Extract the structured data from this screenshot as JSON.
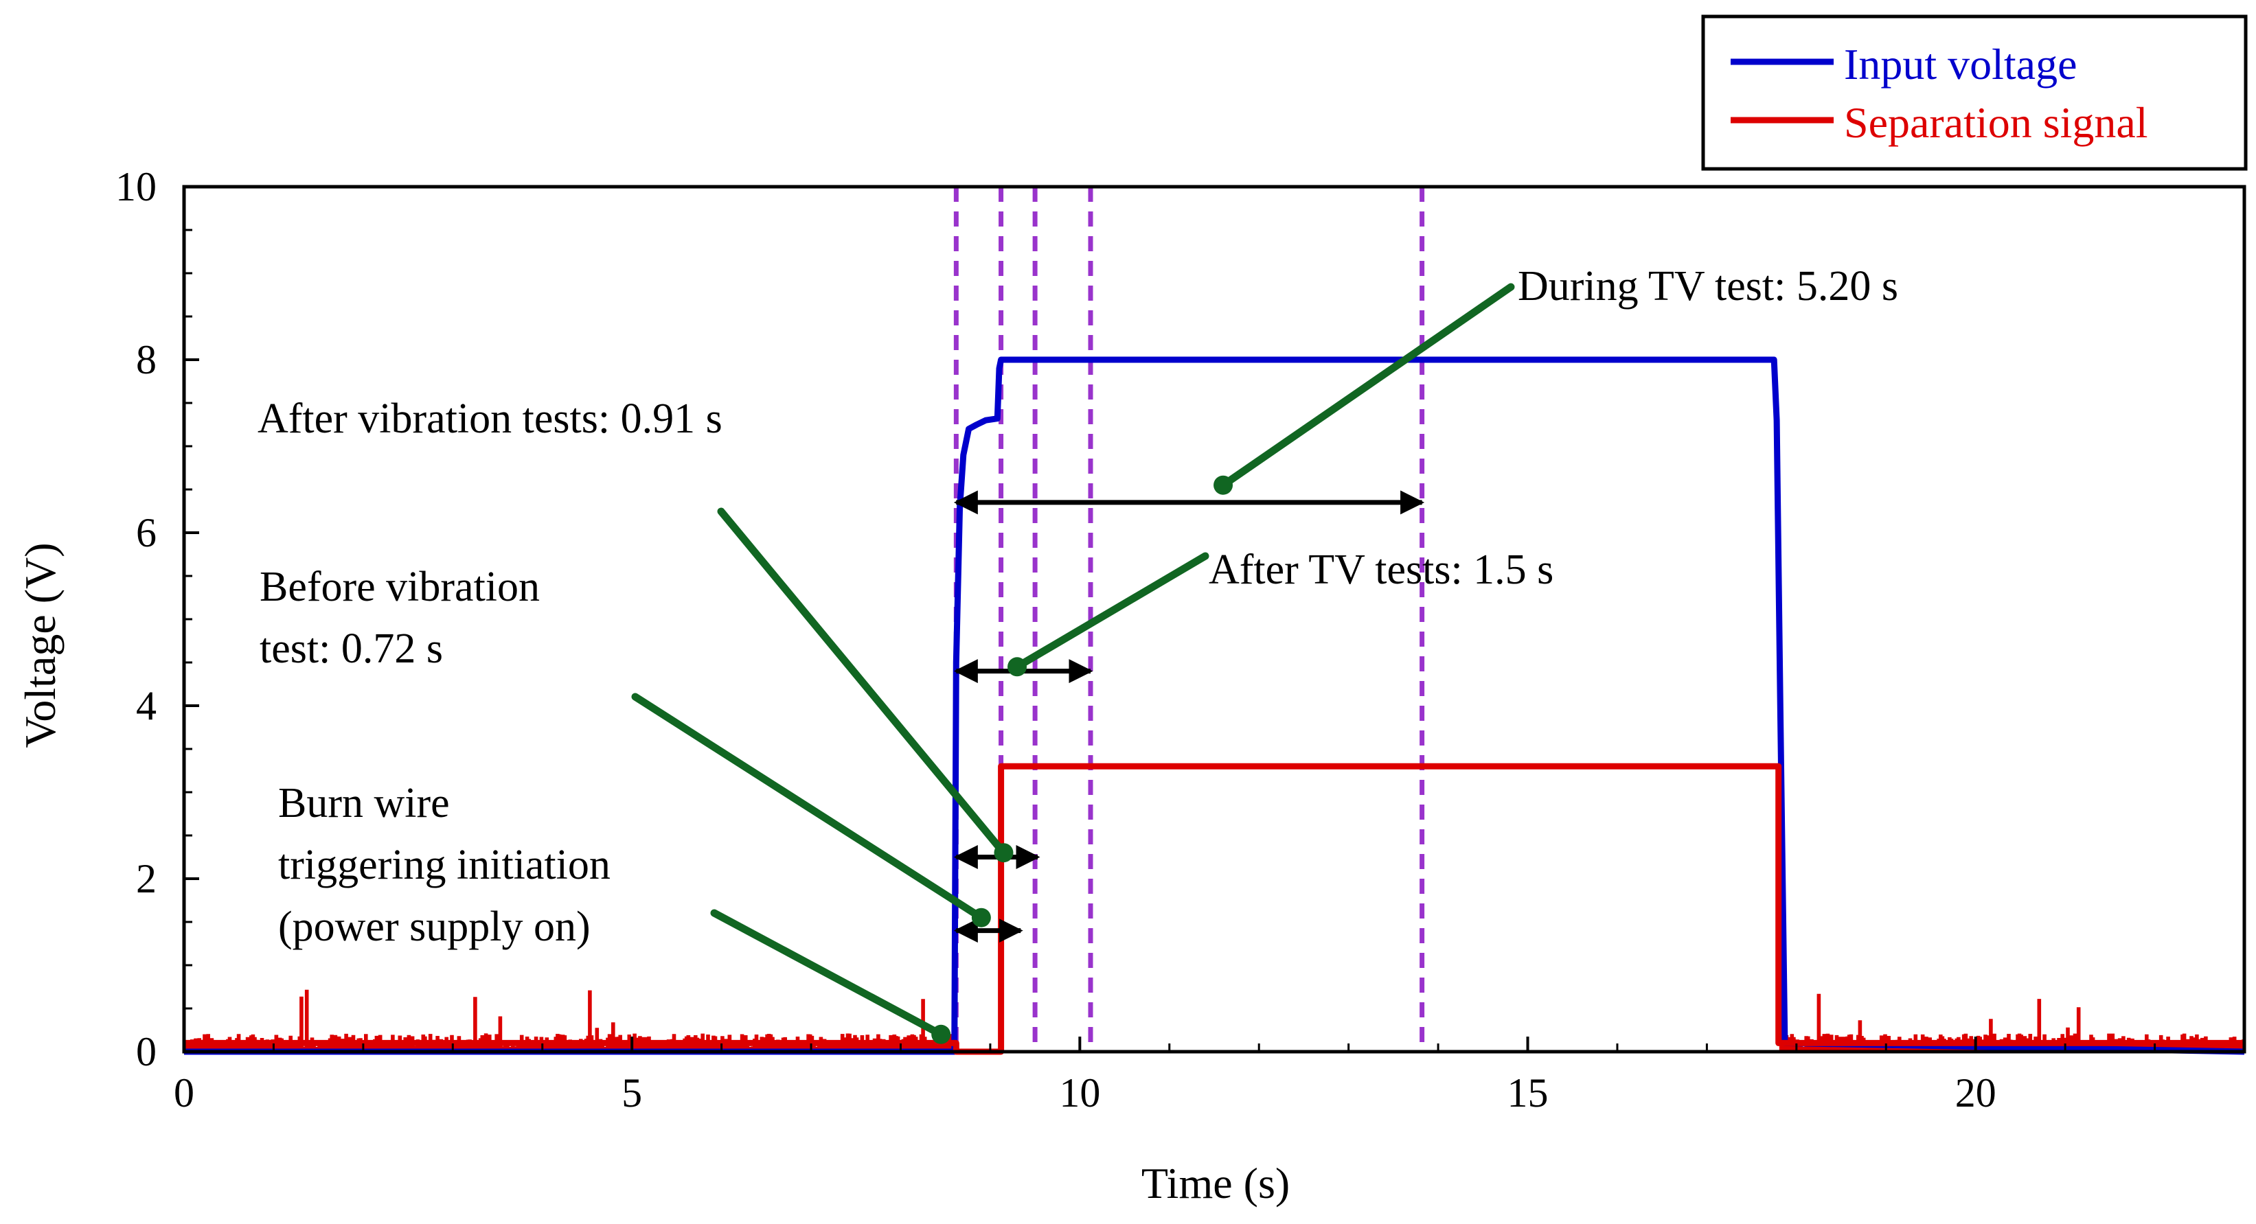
{
  "chart_data": {
    "type": "line",
    "xlabel": "Time (s)",
    "ylabel": "Voltage (V)",
    "xlim": [
      0,
      23
    ],
    "ylim": [
      0,
      10
    ],
    "x_ticks": [
      0,
      5,
      10,
      15,
      20
    ],
    "y_ticks": [
      0,
      2,
      4,
      6,
      8,
      10
    ],
    "legend": {
      "placement": "top-right"
    },
    "series": [
      {
        "name": "Input voltage",
        "color": "#0000cc",
        "x": [
          0,
          8.6,
          8.62,
          8.66,
          8.7,
          8.76,
          8.85,
          8.95,
          9.08,
          9.1,
          9.12,
          17.75,
          17.78,
          17.82,
          17.87,
          23
        ],
        "y": [
          0,
          0,
          4.5,
          6.3,
          6.9,
          7.2,
          7.25,
          7.3,
          7.32,
          7.9,
          8.0,
          8.0,
          7.3,
          4.0,
          0.1,
          0
        ]
      },
      {
        "name": "Separation signal",
        "color": "#dd0000",
        "baseline_noise": {
          "typical_max": 0.2,
          "spike_max": 0.85
        },
        "x": [
          0,
          8.62,
          8.62,
          9.12,
          9.12,
          17.8,
          17.8,
          23
        ],
        "y": [
          0.1,
          0.1,
          0,
          0,
          3.3,
          3.3,
          0.1,
          0.1
        ]
      }
    ],
    "event_markers": {
      "color": "#9933cc",
      "style": "dashed",
      "x": [
        8.62,
        9.12,
        9.5,
        10.12,
        13.82
      ]
    },
    "interval_arrows": [
      {
        "from": 8.62,
        "to": 9.34,
        "y": 1.4,
        "label": "Before vibration test: 0.72 s"
      },
      {
        "from": 8.62,
        "to": 9.53,
        "y": 2.25,
        "label": "After vibration tests: 0.91 s"
      },
      {
        "from": 8.62,
        "to": 10.12,
        "y": 4.4,
        "label": "After TV tests: 1.5 s"
      },
      {
        "from": 8.62,
        "to": 13.82,
        "y": 6.35,
        "label": "During TV test: 5.20 s"
      }
    ],
    "annotations": {
      "burn_wire": [
        "Burn wire",
        "triggering initiation",
        "(power supply on)"
      ],
      "before_vibration": [
        "Before vibration",
        "test: 0.72 s"
      ],
      "after_vibration": "After vibration tests: 0.91 s",
      "after_tv": "After TV tests: 1.5 s",
      "during_tv": "During TV test: 5.20 s"
    },
    "leader_lines": {
      "color": "#116622",
      "points": [
        {
          "x": 8.45,
          "y": 0.2
        },
        {
          "x": 8.9,
          "y": 1.55
        },
        {
          "x": 9.15,
          "y": 2.3
        },
        {
          "x": 9.3,
          "y": 4.45
        },
        {
          "x": 11.6,
          "y": 6.55
        }
      ]
    }
  }
}
